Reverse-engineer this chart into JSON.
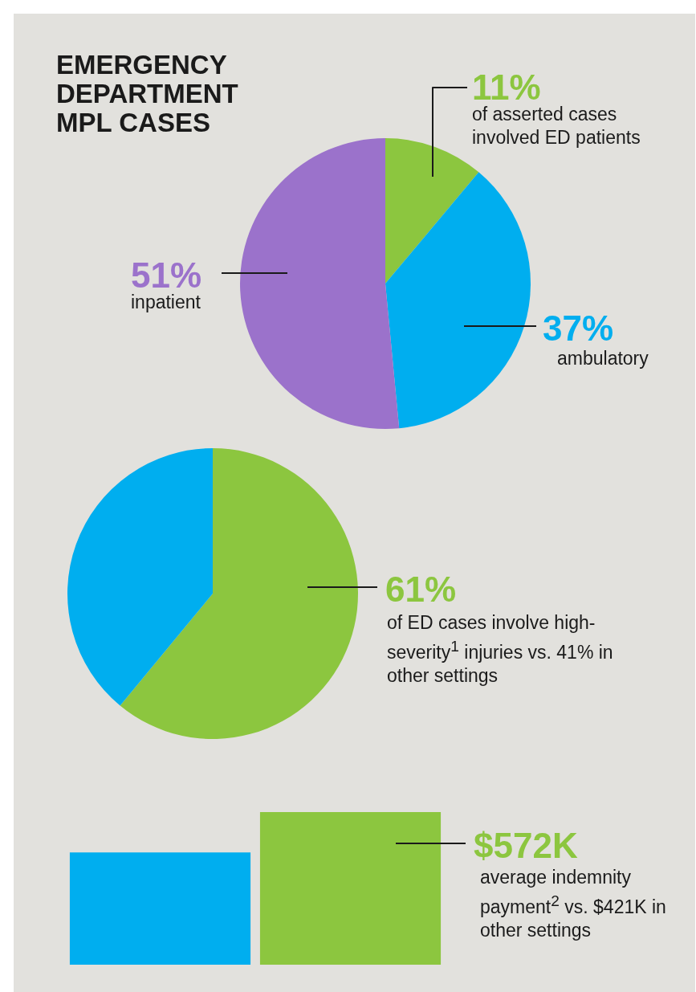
{
  "chart_data": [
    {
      "type": "pie",
      "title": "EMERGENCY DEPARTMENT MPL CASES",
      "categories": [
        "of asserted cases involved ED patients",
        "ambulatory",
        "inpatient"
      ],
      "values": [
        11,
        37,
        51
      ],
      "colors": [
        "#8cc63f",
        "#00aeef",
        "#9b72cb"
      ],
      "value_labels": [
        "11%",
        "37%",
        "51%"
      ]
    },
    {
      "type": "pie",
      "categories": [
        null,
        null
      ],
      "values": [
        61,
        39
      ],
      "colors": [
        "#8cc63f",
        "#00aeef"
      ],
      "value_labels": [
        "61%",
        null
      ],
      "annotations": [
        "of ED cases involve high-severity$^{1}$ injuries vs. 41% in other settings"
      ]
    },
    {
      "type": "bar",
      "categories": [
        null,
        null
      ],
      "values": [
        421,
        572
      ],
      "colors": [
        "#00aeef",
        "#8cc63f"
      ],
      "value_labels": [
        null,
        "$572K"
      ],
      "annotations": [
        "average indemnity payment$^{2}$ vs. $421K in other settings"
      ]
    }
  ]
}
